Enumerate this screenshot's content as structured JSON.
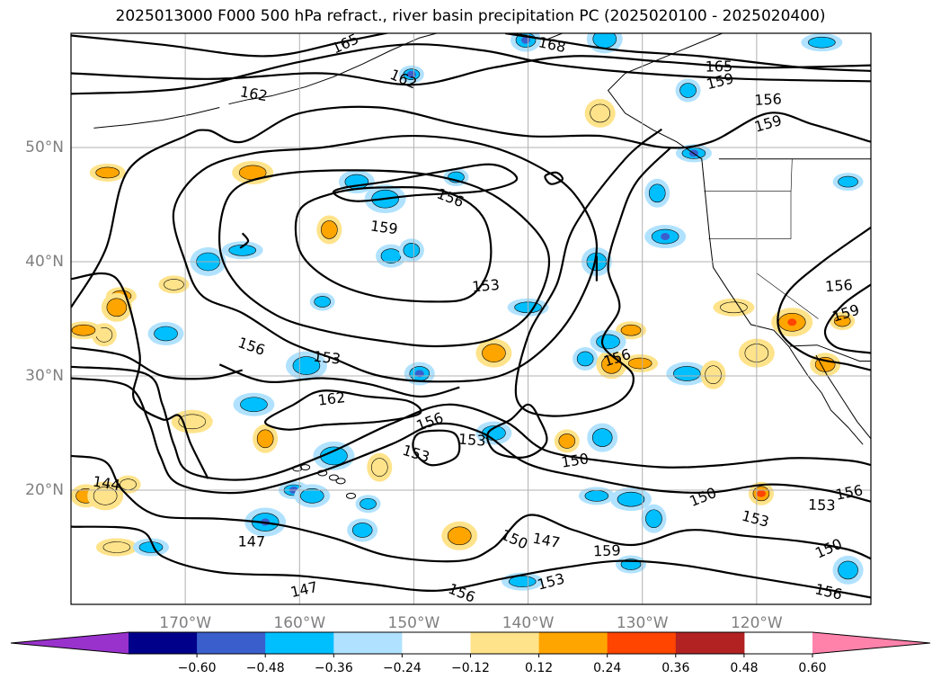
{
  "chart_data": {
    "type": "contour",
    "title": "2025013000 F000 500 hPa refract., river basin precipitation PC (2025020100 - 2025020400)",
    "lon_ticks": [
      "170°W",
      "160°W",
      "150°W",
      "140°W",
      "130°W",
      "120°W"
    ],
    "lat_ticks": [
      "20°N",
      "30°N",
      "40°N",
      "50°N"
    ],
    "lon_tick_values": [
      -170,
      -160,
      -150,
      -140,
      -130,
      -120
    ],
    "lat_tick_values": [
      20,
      30,
      40,
      50
    ],
    "xlim": [
      -180,
      -110
    ],
    "ylim": [
      10,
      60
    ],
    "grid": true,
    "contour_levels": [
      144,
      147,
      150,
      153,
      156,
      159,
      162,
      165,
      168
    ],
    "contour_labels": [
      {
        "text": "165",
        "lon": -156.0,
        "lat": 59.1
      },
      {
        "text": "168",
        "lon": -137.9,
        "lat": 59.0
      },
      {
        "text": "165",
        "lon": -123.3,
        "lat": 57.1
      },
      {
        "text": "159",
        "lon": -123.2,
        "lat": 55.8
      },
      {
        "text": "162",
        "lon": -150.9,
        "lat": 56.0
      },
      {
        "text": "162",
        "lon": -164.0,
        "lat": 54.7
      },
      {
        "text": "156",
        "lon": -119.0,
        "lat": 54.2
      },
      {
        "text": "159",
        "lon": -119.0,
        "lat": 52.1
      },
      {
        "text": "156",
        "lon": -146.8,
        "lat": 45.6
      },
      {
        "text": "159",
        "lon": -152.6,
        "lat": 43.0
      },
      {
        "text": "153",
        "lon": -143.7,
        "lat": 37.9
      },
      {
        "text": "156",
        "lon": -132.2,
        "lat": 31.6
      },
      {
        "text": "156",
        "lon": -164.2,
        "lat": 32.6
      },
      {
        "text": "153",
        "lon": -157.6,
        "lat": 31.6
      },
      {
        "text": "162",
        "lon": -157.2,
        "lat": 28.0
      },
      {
        "text": "156",
        "lon": -148.6,
        "lat": 26.0
      },
      {
        "text": "153",
        "lon": -149.8,
        "lat": 23.2
      },
      {
        "text": "153",
        "lon": -144.9,
        "lat": 24.4
      },
      {
        "text": "150",
        "lon": -135.9,
        "lat": 22.6
      },
      {
        "text": "150",
        "lon": -124.7,
        "lat": 19.4
      },
      {
        "text": "153",
        "lon": -120.1,
        "lat": 17.5
      },
      {
        "text": "153",
        "lon": -114.3,
        "lat": 18.7
      },
      {
        "text": "156",
        "lon": -111.9,
        "lat": 19.8
      },
      {
        "text": "150",
        "lon": -113.7,
        "lat": 14.9
      },
      {
        "text": "156",
        "lon": -113.7,
        "lat": 11.1
      },
      {
        "text": "147",
        "lon": -164.2,
        "lat": 15.5
      },
      {
        "text": "147",
        "lon": -159.6,
        "lat": 11.3
      },
      {
        "text": "150",
        "lon": -141.2,
        "lat": 15.7
      },
      {
        "text": "147",
        "lon": -138.4,
        "lat": 15.6
      },
      {
        "text": "159",
        "lon": -133.1,
        "lat": 14.7
      },
      {
        "text": "153",
        "lon": -138.0,
        "lat": 12.0
      },
      {
        "text": "156",
        "lon": -145.8,
        "lat": 11.0
      },
      {
        "text": "144",
        "lon": -176.9,
        "lat": 20.6
      },
      {
        "text": "156",
        "lon": -112.8,
        "lat": 37.9
      },
      {
        "text": "159",
        "lon": -112.2,
        "lat": 35.5
      }
    ],
    "colorbar": {
      "extend": "both",
      "boundaries": [
        -0.6,
        -0.48,
        -0.36,
        -0.24,
        -0.12,
        0.12,
        0.24,
        0.36,
        0.48,
        0.6
      ],
      "tick_labels": [
        "−0.60",
        "−0.48",
        "−0.36",
        "−0.24",
        "−0.12",
        "0.12",
        "0.24",
        "0.36",
        "0.48",
        "0.60"
      ],
      "colors": [
        "#9932cc",
        "#00008b",
        "#3a5fcd",
        "#00bfff",
        "#b0e2ff",
        "#ffffff",
        "#ffe38a",
        "#ffa500",
        "#ff4500",
        "#b22222",
        "#ff82ab"
      ]
    },
    "shaded_features": [
      {
        "lon": -150.2,
        "lat": 56.4,
        "color": "#00bfff",
        "inner": "#3a5fcd"
      },
      {
        "lon": -140.2,
        "lat": 59.4,
        "color": "#00bfff",
        "inner": "#3a5fcd"
      },
      {
        "lon": -133.3,
        "lat": 59.5,
        "color": "#00bfff"
      },
      {
        "lon": -114.3,
        "lat": 59.2,
        "color": "#00bfff"
      },
      {
        "lon": -126.0,
        "lat": 55.0,
        "color": "#00bfff"
      },
      {
        "lon": -133.7,
        "lat": 53.0,
        "color": "#ffe38a"
      },
      {
        "lon": -176.8,
        "lat": 47.8,
        "color": "#ffa500"
      },
      {
        "lon": -164.1,
        "lat": 47.8,
        "color": "#ffa500"
      },
      {
        "lon": -157.4,
        "lat": 42.8,
        "color": "#ffa500"
      },
      {
        "lon": -171.0,
        "lat": 38.0,
        "color": "#ffe38a"
      },
      {
        "lon": -155.0,
        "lat": 47.0,
        "color": "#00bfff"
      },
      {
        "lon": -152.5,
        "lat": 45.5,
        "color": "#00bfff"
      },
      {
        "lon": -146.3,
        "lat": 47.4,
        "color": "#00bfff"
      },
      {
        "lon": -152.0,
        "lat": 40.5,
        "color": "#00bfff"
      },
      {
        "lon": -168.0,
        "lat": 40.0,
        "color": "#00bfff"
      },
      {
        "lon": -165.0,
        "lat": 41.0,
        "color": "#00bfff"
      },
      {
        "lon": -150.2,
        "lat": 41.0,
        "color": "#00bfff"
      },
      {
        "lon": -134.0,
        "lat": 40.0,
        "color": "#00bfff"
      },
      {
        "lon": -125.5,
        "lat": 49.5,
        "color": "#00bfff",
        "inner": "#3a5fcd"
      },
      {
        "lon": -128.0,
        "lat": 42.2,
        "color": "#00bfff",
        "inner": "#3a5fcd"
      },
      {
        "lon": -128.7,
        "lat": 46.0,
        "color": "#00bfff"
      },
      {
        "lon": -175.6,
        "lat": 37.0,
        "color": "#ffa500"
      },
      {
        "lon": -171.7,
        "lat": 33.7,
        "color": "#00bfff"
      },
      {
        "lon": -159.4,
        "lat": 30.9,
        "color": "#00bfff"
      },
      {
        "lon": -158.0,
        "lat": 36.5,
        "color": "#00bfff"
      },
      {
        "lon": -149.5,
        "lat": 30.2,
        "color": "#00bfff",
        "inner": "#3a5fcd"
      },
      {
        "lon": -143.0,
        "lat": 32.0,
        "color": "#ffa500"
      },
      {
        "lon": -140.0,
        "lat": 36.0,
        "color": "#00bfff"
      },
      {
        "lon": -135.0,
        "lat": 31.5,
        "color": "#00bfff"
      },
      {
        "lon": -132.7,
        "lat": 31.0,
        "color": "#ffa500"
      },
      {
        "lon": -130.2,
        "lat": 31.1,
        "color": "#ffa500"
      },
      {
        "lon": -126.1,
        "lat": 30.2,
        "color": "#00bfff"
      },
      {
        "lon": -123.8,
        "lat": 30.1,
        "color": "#ffe38a"
      },
      {
        "lon": -131.0,
        "lat": 34.0,
        "color": "#ffa500"
      },
      {
        "lon": -133.0,
        "lat": 33.0,
        "color": "#00bfff"
      },
      {
        "lon": -116.9,
        "lat": 34.7,
        "color": "#ffa500",
        "inner": "#ff4500"
      },
      {
        "lon": -112.5,
        "lat": 34.8,
        "color": "#ffa500"
      },
      {
        "lon": -114.0,
        "lat": 31.0,
        "color": "#ffa500"
      },
      {
        "lon": -120.0,
        "lat": 32.0,
        "color": "#ffe38a"
      },
      {
        "lon": -122.0,
        "lat": 36.0,
        "color": "#ffe38a"
      },
      {
        "lon": -177.1,
        "lat": 33.6,
        "color": "#ffe38a"
      },
      {
        "lon": -176.0,
        "lat": 36.0,
        "color": "#ffa500"
      },
      {
        "lon": -178.9,
        "lat": 34.0,
        "color": "#ffa500"
      },
      {
        "lon": -169.4,
        "lat": 26.0,
        "color": "#ffe38a"
      },
      {
        "lon": -163.0,
        "lat": 24.5,
        "color": "#ffa500"
      },
      {
        "lon": -160.5,
        "lat": 20.0,
        "color": "#00bfff",
        "inner": "#3a5fcd"
      },
      {
        "lon": -158.9,
        "lat": 19.5,
        "color": "#00bfff"
      },
      {
        "lon": -163.0,
        "lat": 17.2,
        "color": "#00bfff",
        "inner": "#3a5fcd"
      },
      {
        "lon": -154.0,
        "lat": 18.8,
        "color": "#00bfff"
      },
      {
        "lon": -154.5,
        "lat": 16.5,
        "color": "#00bfff"
      },
      {
        "lon": -146.0,
        "lat": 16.0,
        "color": "#ffa500"
      },
      {
        "lon": -140.5,
        "lat": 12.0,
        "color": "#00bfff"
      },
      {
        "lon": -136.6,
        "lat": 24.3,
        "color": "#ffa500"
      },
      {
        "lon": -133.5,
        "lat": 24.6,
        "color": "#00bfff"
      },
      {
        "lon": -134.0,
        "lat": 19.5,
        "color": "#00bfff"
      },
      {
        "lon": -131.0,
        "lat": 19.2,
        "color": "#00bfff"
      },
      {
        "lon": -129.0,
        "lat": 17.5,
        "color": "#00bfff"
      },
      {
        "lon": -131.0,
        "lat": 13.5,
        "color": "#00bfff"
      },
      {
        "lon": -143.0,
        "lat": 25.0,
        "color": "#00bfff"
      },
      {
        "lon": -157.0,
        "lat": 23.0,
        "color": "#00bfff"
      },
      {
        "lon": -175.0,
        "lat": 20.5,
        "color": "#ffe38a"
      },
      {
        "lon": -178.7,
        "lat": 19.5,
        "color": "#ffa500"
      },
      {
        "lon": -177.0,
        "lat": 19.5,
        "color": "#ffe38a"
      },
      {
        "lon": -176.0,
        "lat": 15.0,
        "color": "#ffe38a"
      },
      {
        "lon": -119.6,
        "lat": 19.7,
        "color": "#ffa500",
        "inner": "#ff4500"
      },
      {
        "lon": -112.0,
        "lat": 13.0,
        "color": "#00bfff"
      },
      {
        "lon": -173.0,
        "lat": 15.0,
        "color": "#00bfff"
      },
      {
        "lon": -164.0,
        "lat": 27.5,
        "color": "#00bfff"
      },
      {
        "lon": -153.0,
        "lat": 22.0,
        "color": "#ffe38a"
      },
      {
        "lon": -112.0,
        "lat": 47.0,
        "color": "#00bfff"
      }
    ]
  }
}
